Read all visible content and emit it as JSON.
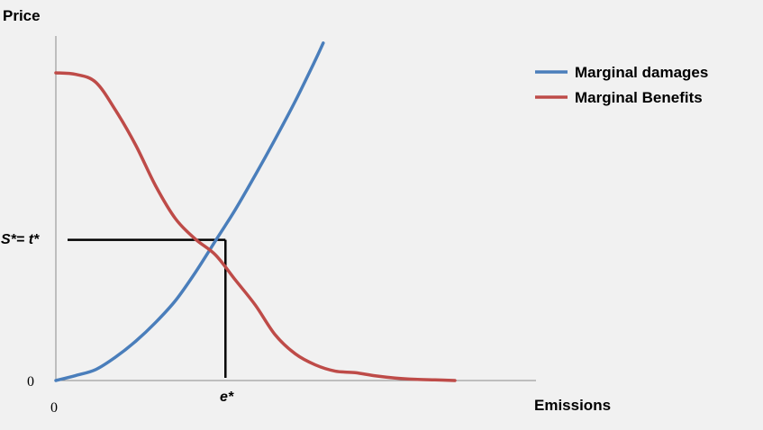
{
  "chart_data": {
    "type": "line",
    "ylabel": "Price",
    "xlabel": "Emissions",
    "xlim": [
      0,
      10
    ],
    "ylim": [
      0,
      10
    ],
    "grid": false,
    "legend_position": "top-right",
    "series": [
      {
        "name": "Marginal damages",
        "color": "#4a7ebb",
        "x": [
          0,
          0.5,
          1,
          1.5,
          2,
          2.5,
          3,
          3.5,
          4,
          4.5,
          5,
          5.5,
          6,
          6.5,
          6.7
        ],
        "y": [
          0,
          0.16,
          0.35,
          0.75,
          1.25,
          1.85,
          2.55,
          3.45,
          4.45,
          5.45,
          6.55,
          7.7,
          8.9,
          10.2,
          10.75
        ]
      },
      {
        "name": "Marginal Benefits",
        "color": "#be4b48",
        "x": [
          0,
          0.5,
          1,
          1.5,
          2,
          2.5,
          3,
          3.5,
          4,
          4.5,
          5,
          5.5,
          6,
          6.5,
          7,
          7.5,
          8,
          8.5,
          9,
          9.5,
          10
        ],
        "y": [
          9.8,
          9.75,
          9.5,
          8.6,
          7.5,
          6.2,
          5.15,
          4.5,
          4.0,
          3.2,
          2.4,
          1.45,
          0.85,
          0.5,
          0.3,
          0.25,
          0.15,
          0.08,
          0.04,
          0.02,
          0
        ]
      }
    ],
    "equilibrium": {
      "x": 4.25,
      "y": 4.48
    },
    "annotations": {
      "price_level": "S*= t*",
      "quantity_level": "e*",
      "y_origin": "0",
      "x_origin": "0"
    }
  }
}
